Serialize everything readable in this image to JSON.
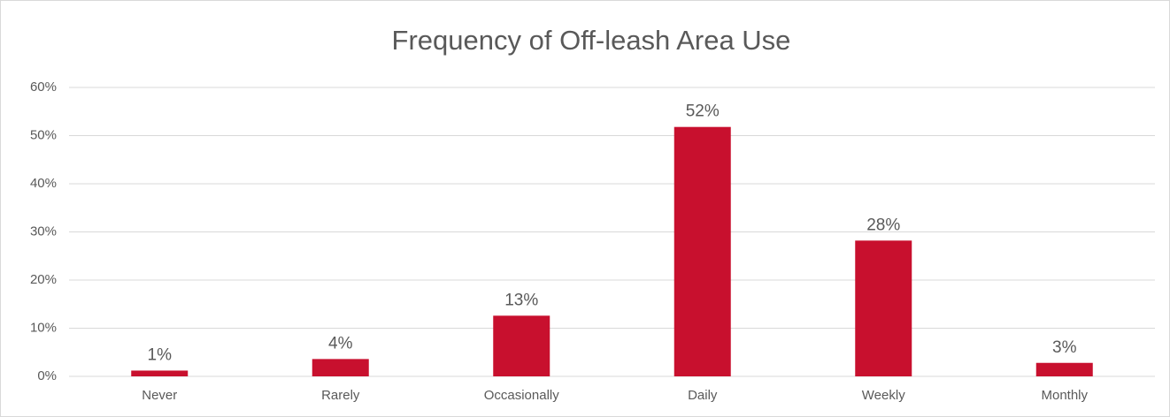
{
  "chart_data": {
    "type": "bar",
    "title": "Frequency of Off-leash Area Use",
    "categories": [
      "Never",
      "Rarely",
      "Occasionally",
      "Daily",
      "Weekly",
      "Monthly"
    ],
    "values": [
      1.2,
      3.6,
      12.6,
      51.8,
      28.2,
      2.8
    ],
    "value_labels": [
      "1%",
      "4%",
      "13%",
      "52%",
      "28%",
      "3%"
    ],
    "color": "#c8102e",
    "ylim": [
      0,
      60
    ],
    "yticks": [
      {
        "value": 0,
        "label": "0%"
      },
      {
        "value": 10,
        "label": "10%"
      },
      {
        "value": 20,
        "label": "20%"
      },
      {
        "value": 30,
        "label": "30%"
      },
      {
        "value": 40,
        "label": "40%"
      },
      {
        "value": 50,
        "label": "50%"
      },
      {
        "value": 60,
        "label": "60%"
      }
    ],
    "grid": true
  }
}
